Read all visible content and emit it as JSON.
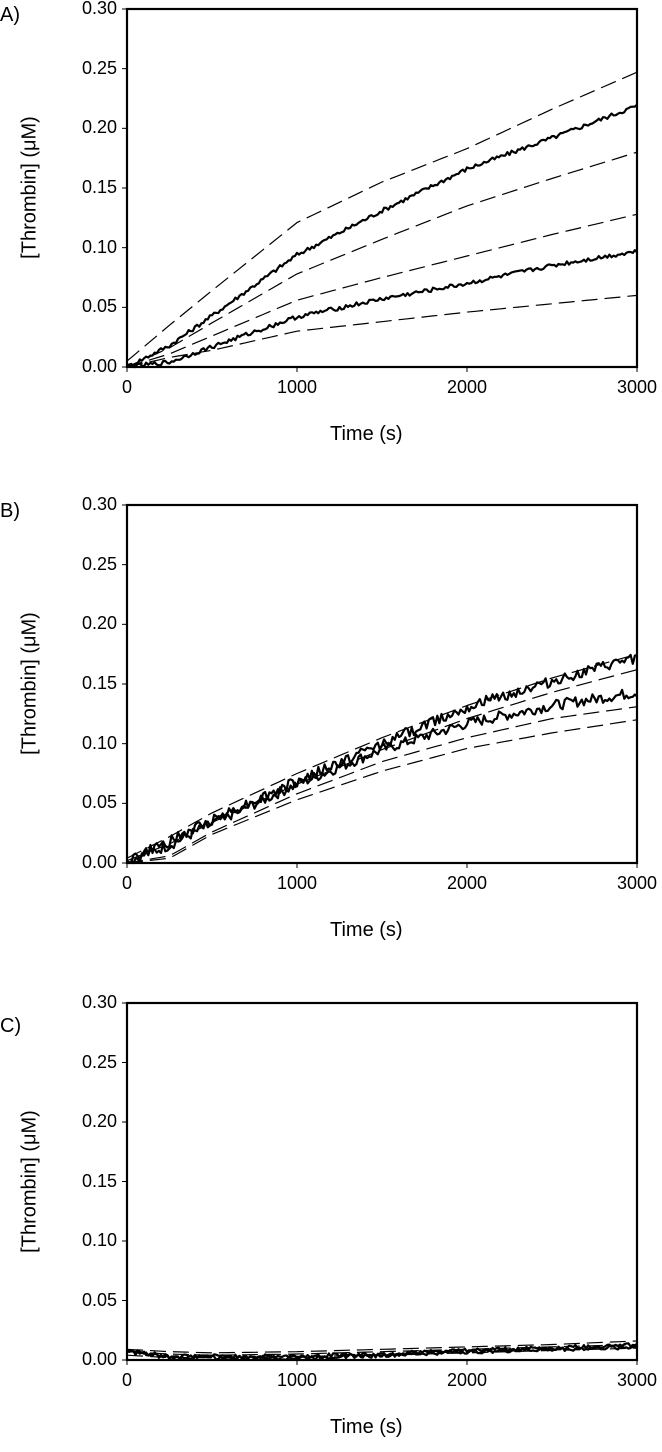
{
  "chart_data": [
    {
      "panel": "A)",
      "type": "line",
      "xlabel": "Time (s)",
      "ylabel": "[Thrombin] (μM)",
      "xlim": [
        0,
        3000
      ],
      "ylim": [
        0,
        0.3
      ],
      "xticks": [
        "0",
        "1000",
        "2000",
        "3000"
      ],
      "yticks": [
        "0.00",
        "0.05",
        "0.10",
        "0.15",
        "0.20",
        "0.25",
        "0.30"
      ],
      "grid": false,
      "legend": null,
      "x": [
        0,
        250,
        500,
        1000,
        1500,
        2000,
        2500,
        3000
      ],
      "series": [
        {
          "name": "fit 1",
          "style": "dashed",
          "values": [
            0.005,
            0.035,
            0.064,
            0.121,
            0.155,
            0.183,
            0.216,
            0.247
          ]
        },
        {
          "name": "data 1",
          "style": "solid",
          "values": [
            0.0,
            0.018,
            0.043,
            0.094,
            0.131,
            0.166,
            0.192,
            0.219
          ]
        },
        {
          "name": "fit 2",
          "style": "dashed",
          "values": [
            0.0,
            0.016,
            0.037,
            0.078,
            0.107,
            0.135,
            0.158,
            0.18
          ]
        },
        {
          "name": "fit 3",
          "style": "dashed",
          "values": [
            0.0,
            0.011,
            0.026,
            0.056,
            0.075,
            0.093,
            0.111,
            0.128
          ]
        },
        {
          "name": "data 2",
          "style": "solid",
          "values": [
            0.0,
            0.004,
            0.017,
            0.042,
            0.057,
            0.07,
            0.085,
            0.097
          ]
        },
        {
          "name": "fit 4",
          "style": "dashed",
          "values": [
            0.0,
            0.008,
            0.014,
            0.03,
            0.038,
            0.046,
            0.053,
            0.06
          ]
        }
      ]
    },
    {
      "panel": "B)",
      "type": "line",
      "xlabel": "Time (s)",
      "ylabel": "[Thrombin] (μM)",
      "xlim": [
        0,
        3000
      ],
      "ylim": [
        0,
        0.3
      ],
      "xticks": [
        "0",
        "1000",
        "2000",
        "3000"
      ],
      "yticks": [
        "0.00",
        "0.05",
        "0.10",
        "0.15",
        "0.20",
        "0.25",
        "0.30"
      ],
      "grid": false,
      "legend": null,
      "x": [
        0,
        250,
        500,
        1000,
        1500,
        2000,
        2500,
        3000
      ],
      "series": [
        {
          "name": "fit 1",
          "style": "dashed",
          "values": [
            0.004,
            0.022,
            0.042,
            0.075,
            0.105,
            0.132,
            0.155,
            0.175
          ]
        },
        {
          "name": "data 1",
          "style": "solid",
          "values": [
            0.002,
            0.018,
            0.036,
            0.068,
            0.1,
            0.131,
            0.152,
            0.172
          ]
        },
        {
          "name": "fit 2",
          "style": "dashed",
          "values": [
            0.002,
            0.016,
            0.034,
            0.066,
            0.095,
            0.121,
            0.143,
            0.162
          ]
        },
        {
          "name": "data 2",
          "style": "solid",
          "values": [
            0.001,
            0.015,
            0.033,
            0.066,
            0.095,
            0.117,
            0.132,
            0.143
          ]
        },
        {
          "name": "fit 3",
          "style": "dashed",
          "values": [
            0.0,
            0.006,
            0.026,
            0.058,
            0.085,
            0.105,
            0.121,
            0.131
          ]
        },
        {
          "name": "fit 4",
          "style": "dashed",
          "values": [
            0.0,
            0.004,
            0.024,
            0.053,
            0.077,
            0.096,
            0.109,
            0.12
          ]
        }
      ]
    },
    {
      "panel": "C)",
      "type": "line",
      "xlabel": "Time (s)",
      "ylabel": "[Thrombin] (μM)",
      "xlim": [
        0,
        3000
      ],
      "ylim": [
        0,
        0.3
      ],
      "xticks": [
        "0",
        "1000",
        "2000",
        "3000"
      ],
      "yticks": [
        "0.00",
        "0.05",
        "0.10",
        "0.15",
        "0.20",
        "0.25",
        "0.30"
      ],
      "grid": false,
      "legend": null,
      "x": [
        0,
        250,
        500,
        1000,
        1500,
        2000,
        2500,
        3000
      ],
      "series": [
        {
          "name": "fit 1",
          "style": "dashed",
          "values": [
            0.009,
            0.007,
            0.006,
            0.007,
            0.009,
            0.011,
            0.013,
            0.016
          ]
        },
        {
          "name": "data 1",
          "style": "solid",
          "values": [
            0.008,
            0.003,
            0.003,
            0.003,
            0.005,
            0.008,
            0.01,
            0.013
          ]
        },
        {
          "name": "fit 2",
          "style": "dashed",
          "values": [
            0.007,
            0.005,
            0.004,
            0.005,
            0.007,
            0.009,
            0.011,
            0.013
          ]
        },
        {
          "name": "data 2",
          "style": "solid",
          "values": [
            0.007,
            0.002,
            0.002,
            0.002,
            0.004,
            0.007,
            0.009,
            0.011
          ]
        },
        {
          "name": "fit 3",
          "style": "dashed",
          "values": [
            0.004,
            0.002,
            0.002,
            0.003,
            0.004,
            0.006,
            0.008,
            0.01
          ]
        }
      ]
    }
  ],
  "panels": [
    {
      "letter": "A)",
      "ylabel": "[Thrombin] (μM)",
      "xlabel": "Time (s)"
    },
    {
      "letter": "B)",
      "ylabel": "[Thrombin] (μM)",
      "xlabel": "Time (s)"
    },
    {
      "letter": "C)",
      "ylabel": "[Thrombin] (μM)",
      "xlabel": "Time (s)"
    }
  ],
  "axis": {
    "yticks": [
      "0.00",
      "0.05",
      "0.10",
      "0.15",
      "0.20",
      "0.25",
      "0.30"
    ],
    "xticks": [
      "0",
      "1000",
      "2000",
      "3000"
    ]
  },
  "colors": {
    "line": "#000000",
    "background": "#ffffff"
  }
}
